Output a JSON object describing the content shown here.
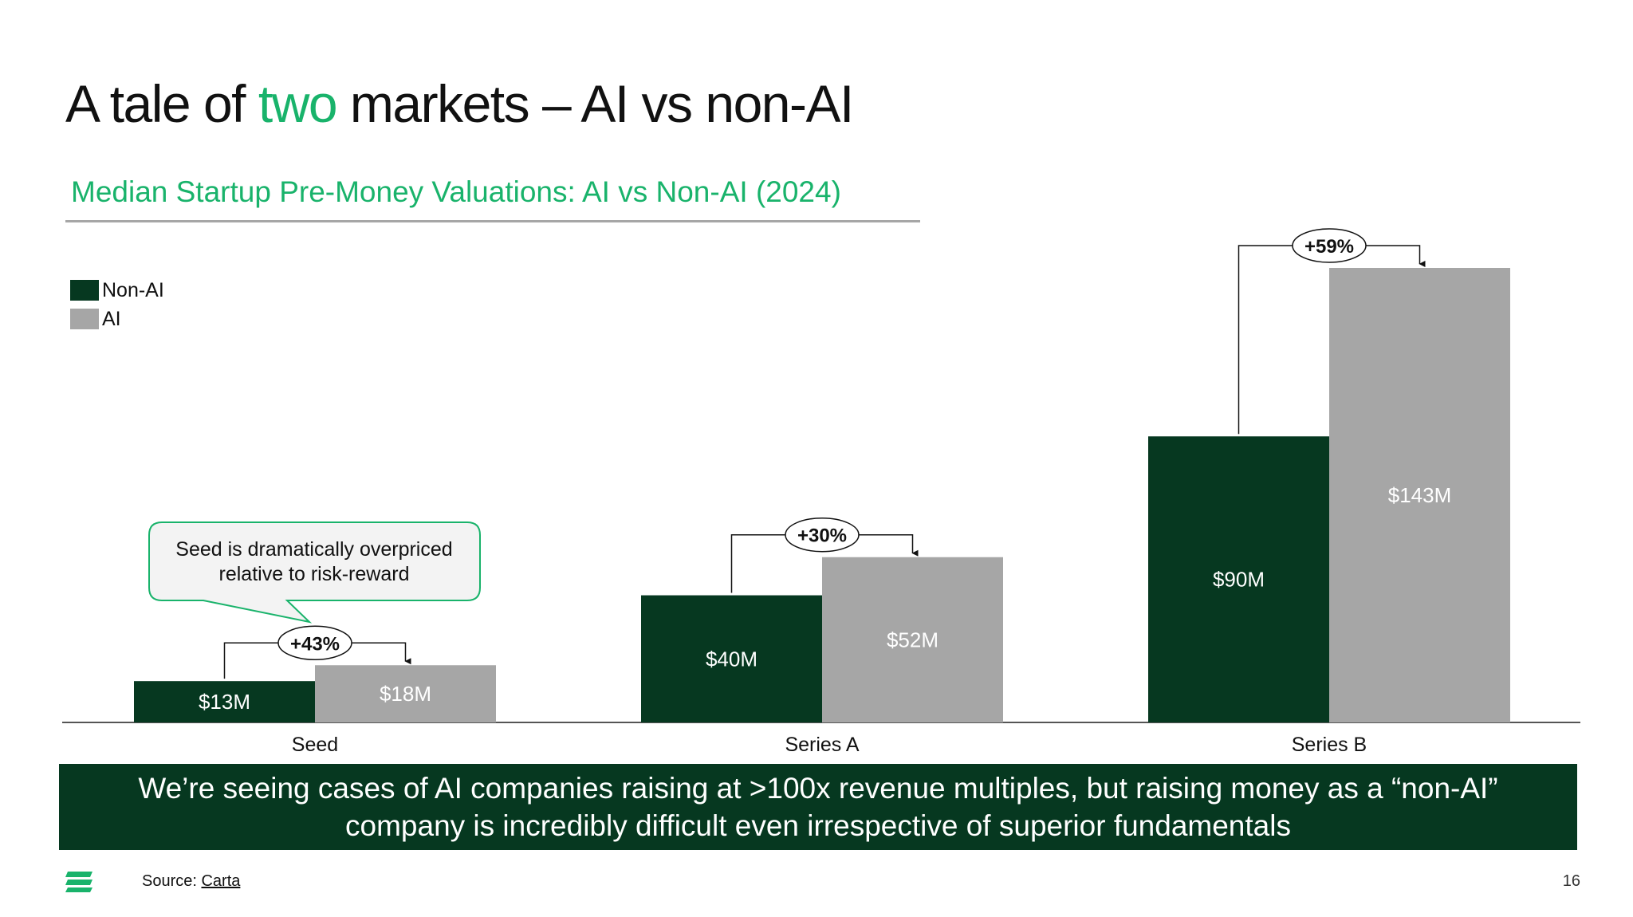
{
  "slide": {
    "title_before": "A tale of ",
    "title_accent": "two",
    "title_after": " markets – AI vs non-AI",
    "message_line1": "We’re seeing cases of AI companies raising at >100x revenue multiples, but raising money as a “non-AI”",
    "message_line2": "company is incredibly difficult even irrespective of superior fundamentals",
    "source_label": "Source: ",
    "source_link": "Carta",
    "page_number": "16",
    "logo_icon": "carta-logo-icon"
  },
  "colors": {
    "accent": "#19b36b",
    "non_ai": "#063820",
    "ai": "#a6a6a6",
    "message_bg": "#063820"
  },
  "chart_data": {
    "type": "bar",
    "title": "Median Startup Pre-Money Valuations: AI vs Non-AI (2024)",
    "categories": [
      "Seed",
      "Series A",
      "Series B"
    ],
    "series": [
      {
        "name": "Non-AI",
        "color": "#063820",
        "values": [
          13,
          40,
          90
        ],
        "labels": [
          "$13M",
          "$40M",
          "$90M"
        ]
      },
      {
        "name": "AI",
        "color": "#a6a6a6",
        "values": [
          18,
          52,
          143
        ],
        "labels": [
          "$18M",
          "$52M",
          "$143M"
        ]
      }
    ],
    "unit": "$M",
    "growth_labels": [
      "+43%",
      "+30%",
      "+59%"
    ],
    "annotation": {
      "category": "Seed",
      "line1": "Seed is dramatically overpriced",
      "line2": "relative to risk-reward"
    },
    "ylim": [
      0,
      143
    ],
    "grid": false,
    "legend_position": "top-left"
  }
}
